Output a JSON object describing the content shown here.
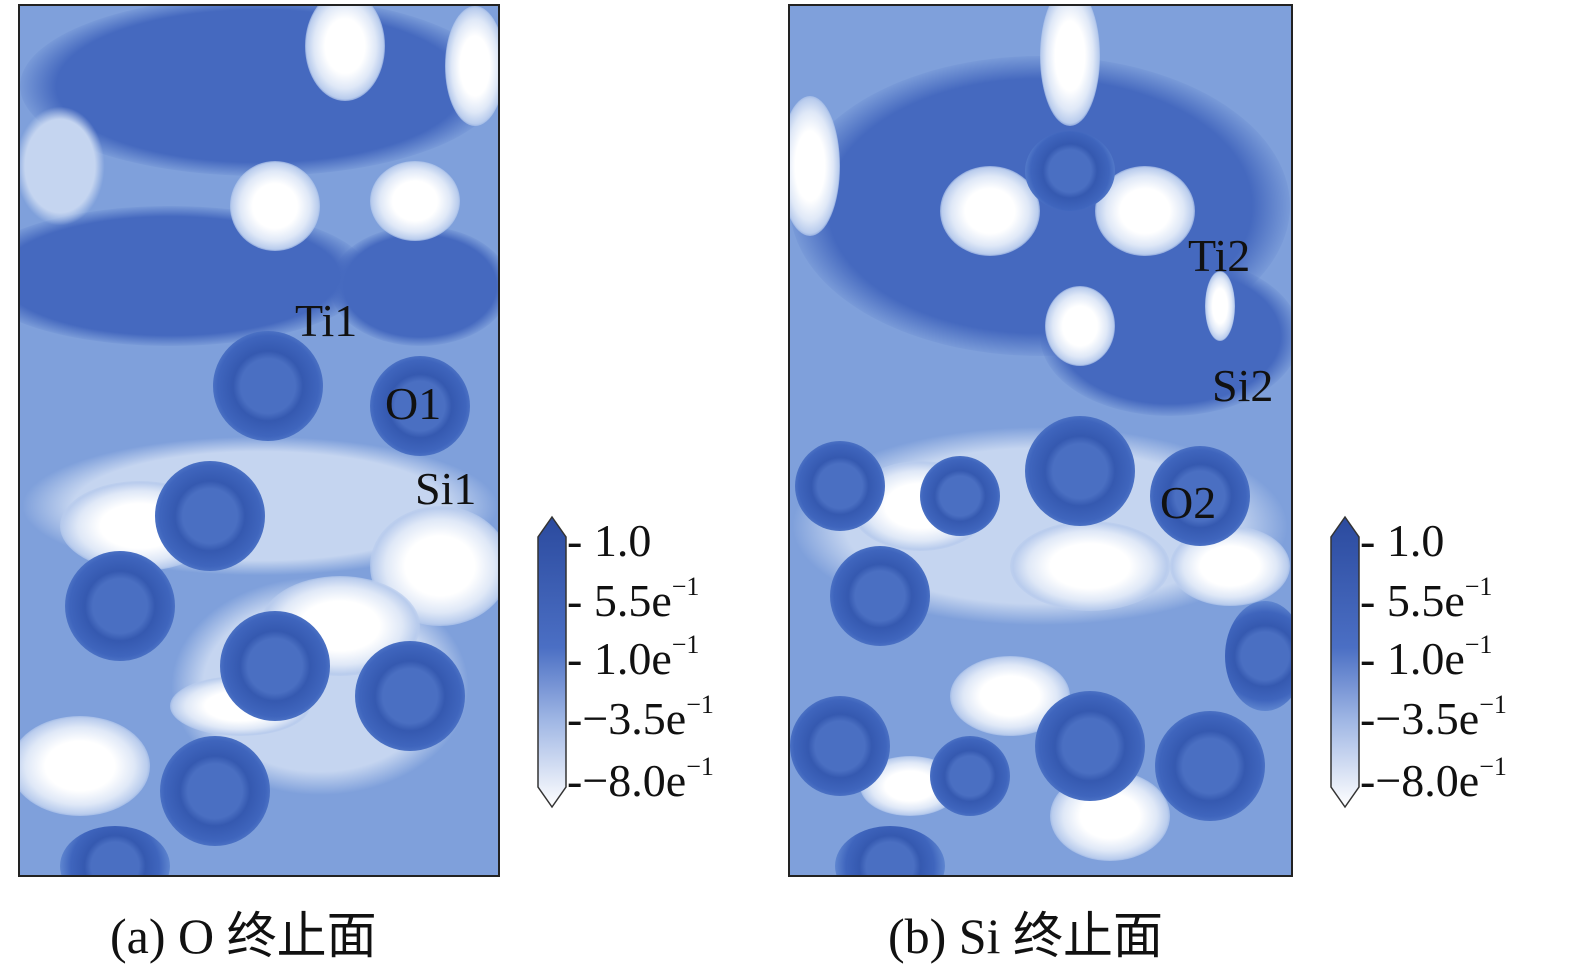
{
  "panels": [
    {
      "id": "a",
      "caption": "(a) O 终止面",
      "labels": [
        "Ti1",
        "O1",
        "Si1"
      ]
    },
    {
      "id": "b",
      "caption": "(b) Si 终止面",
      "labels": [
        "Ti2",
        "Si2",
        "O2"
      ]
    }
  ],
  "colorbar": {
    "ticks": [
      "1.0",
      "5.5e",
      "1.0e",
      "−3.5e",
      "−8.0e"
    ],
    "exponent": "−1",
    "colors": {
      "max": "#2b4a9e",
      "mid": "#5f86d0",
      "min": "#ffffff"
    }
  }
}
